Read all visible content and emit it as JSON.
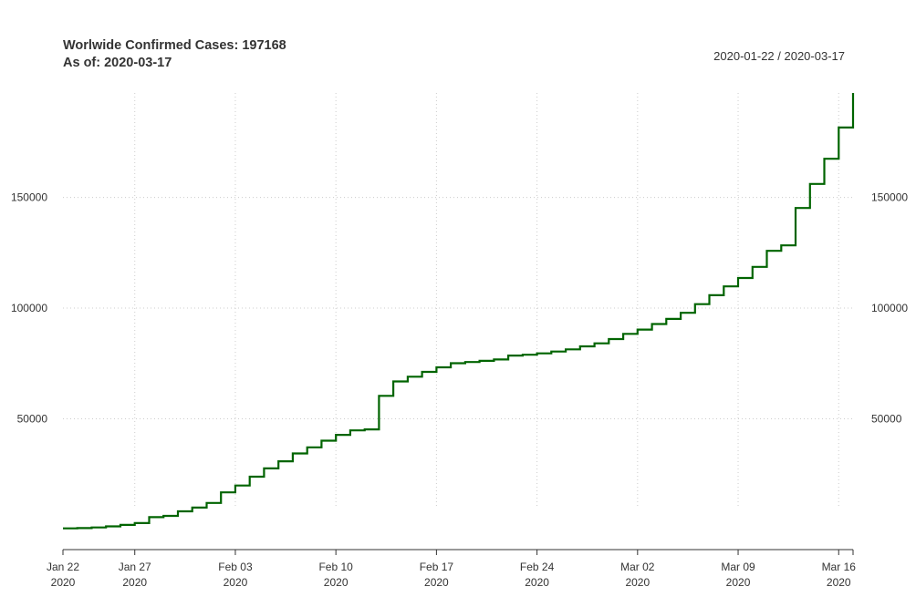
{
  "chart_data": {
    "type": "line",
    "step": true,
    "title": "Worlwide Confirmed Cases: 197168",
    "subtitle": "As of: 2020-03-17",
    "date_range": "2020-01-22 / 2020-03-17",
    "line_color": "#006400",
    "grid": true,
    "xlim": [
      "2020-01-22",
      "2020-03-17"
    ],
    "ylim": [
      0,
      197168
    ],
    "y_ticks": [
      50000,
      100000,
      150000
    ],
    "y_tick_labels": [
      "50000",
      "100000",
      "150000"
    ],
    "x_ticks": [
      {
        "date": "2020-01-22",
        "label": "Jan 22",
        "year": "2020"
      },
      {
        "date": "2020-01-27",
        "label": "Jan 27",
        "year": "2020"
      },
      {
        "date": "2020-02-03",
        "label": "Feb 03",
        "year": "2020"
      },
      {
        "date": "2020-02-10",
        "label": "Feb 10",
        "year": "2020"
      },
      {
        "date": "2020-02-17",
        "label": "Feb 17",
        "year": "2020"
      },
      {
        "date": "2020-02-24",
        "label": "Feb 24",
        "year": "2020"
      },
      {
        "date": "2020-03-02",
        "label": "Mar 02",
        "year": "2020"
      },
      {
        "date": "2020-03-09",
        "label": "Mar 09",
        "year": "2020"
      },
      {
        "date": "2020-03-16",
        "label": "Mar 16",
        "year": "2020"
      }
    ],
    "x": [
      "2020-01-22",
      "2020-01-23",
      "2020-01-24",
      "2020-01-25",
      "2020-01-26",
      "2020-01-27",
      "2020-01-28",
      "2020-01-29",
      "2020-01-30",
      "2020-01-31",
      "2020-02-01",
      "2020-02-02",
      "2020-02-03",
      "2020-02-04",
      "2020-02-05",
      "2020-02-06",
      "2020-02-07",
      "2020-02-08",
      "2020-02-09",
      "2020-02-10",
      "2020-02-11",
      "2020-02-12",
      "2020-02-13",
      "2020-02-14",
      "2020-02-15",
      "2020-02-16",
      "2020-02-17",
      "2020-02-18",
      "2020-02-19",
      "2020-02-20",
      "2020-02-21",
      "2020-02-22",
      "2020-02-23",
      "2020-02-24",
      "2020-02-25",
      "2020-02-26",
      "2020-02-27",
      "2020-02-28",
      "2020-02-29",
      "2020-03-01",
      "2020-03-02",
      "2020-03-03",
      "2020-03-04",
      "2020-03-05",
      "2020-03-06",
      "2020-03-07",
      "2020-03-08",
      "2020-03-09",
      "2020-03-10",
      "2020-03-11",
      "2020-03-12",
      "2020-03-13",
      "2020-03-14",
      "2020-03-15",
      "2020-03-16",
      "2020-03-17"
    ],
    "series": [
      {
        "values": [
          555,
          654,
          941,
          1434,
          2118,
          2927,
          5578,
          6166,
          8234,
          9927,
          12038,
          16787,
          19881,
          23892,
          27635,
          30817,
          34391,
          37120,
          40150,
          42762,
          44802,
          45221,
          60368,
          66885,
          69030,
          71224,
          73258,
          75136,
          75639,
          76197,
          76819,
          78572,
          78958,
          79561,
          80406,
          81388,
          82746,
          84112,
          86011,
          88369,
          90306,
          92840,
          95120,
          97886,
          101801,
          105847,
          109821,
          113590,
          118620,
          125875,
          128352,
          145205,
          156101,
          167454,
          181574,
          197168
        ]
      }
    ]
  }
}
